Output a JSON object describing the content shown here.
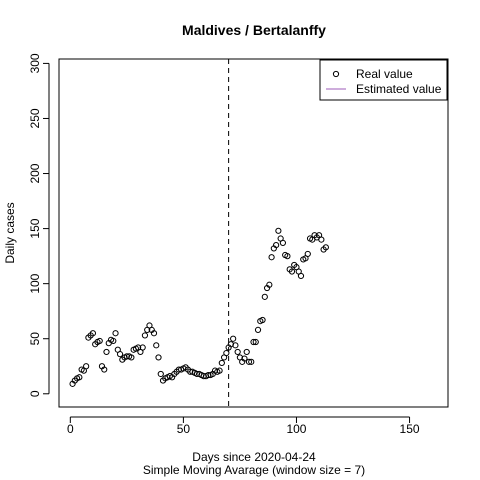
{
  "chart_data": {
    "type": "scatter",
    "title": "Maldives / Bertalanffy",
    "xlabel": "Days since 2020-04-24",
    "xlabel2": "Simple Moving Avarage (window size = 7)",
    "ylabel": "Daily cases",
    "xlim": [
      -5,
      167
    ],
    "ylim": [
      -12,
      304
    ],
    "x_ticks": [
      0,
      50,
      100,
      150
    ],
    "y_ticks": [
      0,
      50,
      100,
      150,
      200,
      250,
      300
    ],
    "vline_x": 70,
    "legend": {
      "position": "top-right",
      "entries": [
        {
          "label": "Real value",
          "type": "point"
        },
        {
          "label": "Estimated value",
          "type": "line",
          "color": "#b07cc6"
        }
      ]
    },
    "series": [
      {
        "name": "Real value",
        "points": [
          [
            1,
            9
          ],
          [
            2,
            12
          ],
          [
            3,
            14
          ],
          [
            4,
            15
          ],
          [
            5,
            22
          ],
          [
            6,
            21
          ],
          [
            7,
            25
          ],
          [
            8,
            51
          ],
          [
            9,
            53
          ],
          [
            10,
            55
          ],
          [
            11,
            45
          ],
          [
            12,
            47
          ],
          [
            13,
            48
          ],
          [
            14,
            25
          ],
          [
            15,
            22
          ],
          [
            16,
            38
          ],
          [
            17,
            46
          ],
          [
            18,
            49
          ],
          [
            19,
            48
          ],
          [
            20,
            55
          ],
          [
            21,
            40
          ],
          [
            22,
            36
          ],
          [
            23,
            31
          ],
          [
            24,
            33
          ],
          [
            25,
            34
          ],
          [
            26,
            34
          ],
          [
            27,
            33
          ],
          [
            28,
            40
          ],
          [
            29,
            41
          ],
          [
            30,
            42
          ],
          [
            31,
            38
          ],
          [
            32,
            42
          ],
          [
            33,
            53
          ],
          [
            34,
            58
          ],
          [
            35,
            62
          ],
          [
            36,
            58
          ],
          [
            37,
            55
          ],
          [
            38,
            44
          ],
          [
            39,
            33
          ],
          [
            40,
            18
          ],
          [
            41,
            12
          ],
          [
            42,
            14
          ],
          [
            43,
            15
          ],
          [
            44,
            16
          ],
          [
            45,
            15
          ],
          [
            46,
            18
          ],
          [
            47,
            20
          ],
          [
            48,
            22
          ],
          [
            49,
            22
          ],
          [
            50,
            23
          ],
          [
            51,
            24
          ],
          [
            52,
            22
          ],
          [
            53,
            20
          ],
          [
            54,
            20
          ],
          [
            55,
            19
          ],
          [
            56,
            18
          ],
          [
            57,
            18
          ],
          [
            58,
            17
          ],
          [
            59,
            16
          ],
          [
            60,
            16
          ],
          [
            61,
            17
          ],
          [
            62,
            17
          ],
          [
            63,
            18
          ],
          [
            64,
            21
          ],
          [
            65,
            20
          ],
          [
            66,
            21
          ],
          [
            67,
            28
          ],
          [
            68,
            33
          ],
          [
            69,
            37
          ],
          [
            70,
            42
          ],
          [
            71,
            45
          ],
          [
            72,
            50
          ],
          [
            73,
            44
          ],
          [
            74,
            38
          ],
          [
            75,
            33
          ],
          [
            76,
            29
          ],
          [
            77,
            32
          ],
          [
            78,
            38
          ],
          [
            79,
            29
          ],
          [
            80,
            29
          ],
          [
            81,
            47
          ],
          [
            82,
            47
          ],
          [
            83,
            58
          ],
          [
            84,
            66
          ],
          [
            85,
            67
          ],
          [
            86,
            88
          ],
          [
            87,
            96
          ],
          [
            88,
            99
          ],
          [
            89,
            124
          ],
          [
            90,
            132
          ],
          [
            91,
            135
          ],
          [
            92,
            148
          ],
          [
            93,
            141
          ],
          [
            94,
            137
          ],
          [
            95,
            126
          ],
          [
            96,
            125
          ],
          [
            97,
            113
          ],
          [
            98,
            111
          ],
          [
            99,
            117
          ],
          [
            100,
            115
          ],
          [
            101,
            111
          ],
          [
            102,
            107
          ],
          [
            103,
            122
          ],
          [
            104,
            123
          ],
          [
            105,
            127
          ],
          [
            106,
            141
          ],
          [
            107,
            140
          ],
          [
            108,
            144
          ],
          [
            109,
            142
          ],
          [
            110,
            144
          ],
          [
            111,
            140
          ],
          [
            112,
            131
          ],
          [
            113,
            133
          ]
        ]
      }
    ]
  }
}
